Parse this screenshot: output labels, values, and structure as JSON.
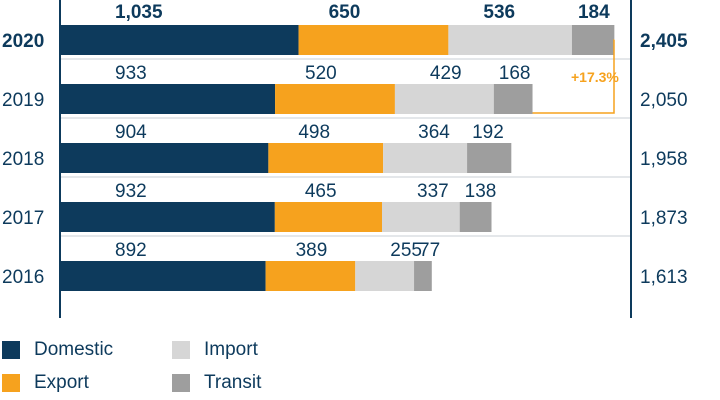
{
  "chart_data": {
    "type": "bar",
    "orientation": "horizontal",
    "stacked": true,
    "categories": [
      "2020",
      "2019",
      "2018",
      "2017",
      "2016"
    ],
    "series": [
      {
        "name": "Domestic",
        "values": [
          1035,
          933,
          904,
          932,
          892
        ]
      },
      {
        "name": "Export",
        "values": [
          650,
          520,
          498,
          465,
          389
        ]
      },
      {
        "name": "Import",
        "values": [
          536,
          429,
          364,
          337,
          255
        ]
      },
      {
        "name": "Transit",
        "values": [
          184,
          168,
          192,
          138,
          77
        ]
      }
    ],
    "totals": [
      "2,405",
      "2,050",
      "1,958",
      "1,873",
      "1,613"
    ],
    "value_labels": [
      [
        "1,035",
        "650",
        "536",
        "184"
      ],
      [
        "933",
        "520",
        "429",
        "168"
      ],
      [
        "904",
        "498",
        "364",
        "192"
      ],
      [
        "932",
        "465",
        "337",
        "138"
      ],
      [
        "892",
        "389",
        "255",
        "77"
      ]
    ],
    "highlighted_category": "2020",
    "annotation": "+17.3%",
    "colors": {
      "Domestic": "#0d3a5c",
      "Export": "#f6a21e",
      "Import": "#d6d6d6",
      "Transit": "#9e9e9e",
      "annotation": "#f6a21e",
      "text": "#0d3a5c"
    },
    "legend_position": "bottom-left",
    "grid": false
  }
}
